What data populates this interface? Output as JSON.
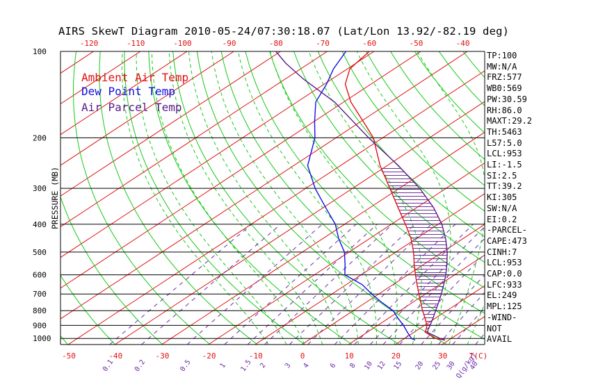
{
  "title": "AIRS SkewT Diagram 2010-05-24/07:30:18.07 (Lat/Lon 13.92/-82.19 deg)",
  "colors": {
    "ambient": "#e01010",
    "dewpoint": "#1010e0",
    "parcel": "#5a1a8a",
    "isotherm": "#e01010",
    "dry_adiabat": "#14c814",
    "moist_adiabat": "#14c814",
    "mixing_ratio": "#6a2aa8",
    "pressure_line": "#000000"
  },
  "legend": {
    "ambient": "Ambient Air Temp",
    "dewpoint": "Dew Point Temp",
    "parcel": "Air Parcel Temp"
  },
  "side_panel": [
    "TP:100",
    "MW:N/A",
    "FRZ:577",
    "WB0:569",
    "PW:30.59",
    "RH:86.0",
    "MAXT:29.2",
    "TH:5463",
    "L57:5.0",
    "LCL:953",
    "LI:-1.5",
    "SI:2.5",
    "TT:39.2",
    "KI:305",
    "SW:N/A",
    "EI:0.2",
    "-PARCEL-",
    "CAPE:473",
    "CINH:7",
    "LCL:953",
    "CAP:0.0",
    "LFC:933",
    "EL:249",
    "MPL:125",
    "-WIND-",
    "NOT",
    "AVAIL"
  ],
  "chart_data": {
    "type": "line",
    "subtype": "skew-t log-p",
    "ylabel": "PRESSURE (MB)",
    "y_scale": "log",
    "ylim": [
      1050,
      100
    ],
    "pressure_ticks": [
      100,
      200,
      300,
      400,
      500,
      600,
      700,
      800,
      900,
      1000
    ],
    "bottom_temp_ticks": [
      -50,
      -40,
      -30,
      -20,
      -10,
      0,
      10,
      20,
      30
    ],
    "top_temp_ticks": [
      -120,
      -110,
      -100,
      -90,
      -80,
      -70,
      -60,
      -50,
      -40
    ],
    "temp_unit_label": "T(C)",
    "mixing_ratio_ticks": [
      "0.1",
      "0.2",
      "0.5",
      "1",
      "1.5",
      "2",
      "3",
      "4",
      "6",
      "8",
      "10",
      "12",
      "15",
      "20",
      "25",
      "30",
      "40"
    ],
    "mixing_ratio_unit_label": "Q(g/kg)",
    "series": [
      {
        "name": "Ambient Air Temp",
        "points": [
          [
            1013,
            29.2
          ],
          [
            1000,
            26.5
          ],
          [
            975,
            24.5
          ],
          [
            950,
            22.3
          ],
          [
            925,
            21.5
          ],
          [
            900,
            20.5
          ],
          [
            850,
            17.8
          ],
          [
            800,
            14.8
          ],
          [
            750,
            11.8
          ],
          [
            700,
            8.6
          ],
          [
            650,
            5.2
          ],
          [
            600,
            1.6
          ],
          [
            550,
            -2.2
          ],
          [
            500,
            -6.2
          ],
          [
            450,
            -11.0
          ],
          [
            400,
            -17.0
          ],
          [
            350,
            -24.0
          ],
          [
            300,
            -32.0
          ],
          [
            250,
            -41.5
          ],
          [
            200,
            -52.0
          ],
          [
            180,
            -58.0
          ],
          [
            150,
            -68.5
          ],
          [
            130,
            -75.5
          ],
          [
            115,
            -79.5
          ],
          [
            100,
            -81.0
          ]
        ]
      },
      {
        "name": "Dew Point Temp",
        "points": [
          [
            1013,
            22.8
          ],
          [
            1000,
            21.5
          ],
          [
            950,
            18.5
          ],
          [
            900,
            15.5
          ],
          [
            850,
            12.0
          ],
          [
            800,
            8.5
          ],
          [
            750,
            3.5
          ],
          [
            700,
            -1.5
          ],
          [
            650,
            -6.5
          ],
          [
            600,
            -13.5
          ],
          [
            550,
            -17.0
          ],
          [
            500,
            -21.0
          ],
          [
            450,
            -26.5
          ],
          [
            400,
            -32.0
          ],
          [
            350,
            -39.5
          ],
          [
            300,
            -48.0
          ],
          [
            250,
            -57.0
          ],
          [
            200,
            -64.5
          ],
          [
            175,
            -70.0
          ],
          [
            150,
            -76.0
          ],
          [
            130,
            -79.5
          ],
          [
            115,
            -83.0
          ],
          [
            100,
            -86.0
          ]
        ]
      },
      {
        "name": "Air Parcel Temp",
        "points": [
          [
            1013,
            29.2
          ],
          [
            1000,
            27.6
          ],
          [
            975,
            25.2
          ],
          [
            953,
            23.0
          ],
          [
            933,
            22.2
          ],
          [
            900,
            21.2
          ],
          [
            850,
            19.5
          ],
          [
            800,
            17.6
          ],
          [
            750,
            15.6
          ],
          [
            700,
            13.4
          ],
          [
            650,
            10.9
          ],
          [
            600,
            8.1
          ],
          [
            550,
            4.8
          ],
          [
            500,
            1.0
          ],
          [
            450,
            -3.6
          ],
          [
            400,
            -9.2
          ],
          [
            350,
            -16.4
          ],
          [
            300,
            -25.6
          ],
          [
            250,
            -37.6
          ],
          [
            200,
            -53.0
          ],
          [
            150,
            -72.0
          ],
          [
            125,
            -86.0
          ],
          [
            110,
            -95.0
          ],
          [
            100,
            -101.0
          ]
        ]
      }
    ]
  }
}
